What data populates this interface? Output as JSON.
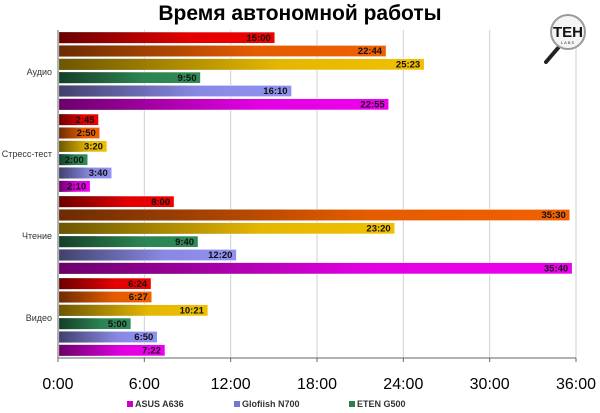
{
  "chart_data": {
    "type": "bar",
    "orientation": "horizontal",
    "title": "Время автономной работы",
    "categories": [
      "Аудио",
      "Стресс-тест",
      "Чтение",
      "Видео"
    ],
    "xlim": [
      "0:00",
      "36:00"
    ],
    "x_ticks": [
      "0:00",
      "6:00",
      "12:00",
      "18:00",
      "24:00",
      "30:00",
      "36:00"
    ],
    "grid": true,
    "legend_position": "bottom",
    "series": [
      {
        "color": "#ee0000",
        "values": [
          "15:00",
          "2:45",
          "8:00",
          "6:24"
        ]
      },
      {
        "color": "#f06000",
        "values": [
          "22:44",
          "2:50",
          "35:30",
          "6:27"
        ]
      },
      {
        "color": "#f0c000",
        "values": [
          "25:23",
          "3:20",
          "23:20",
          "10:21"
        ]
      },
      {
        "name": "ETEN G500",
        "color": "#2e8b57",
        "values": [
          "9:50",
          "2:00",
          "9:40",
          "5:00"
        ]
      },
      {
        "name": "Glofiish N700",
        "color": "#9090f0",
        "values": [
          "16:10",
          "3:40",
          "12:20",
          "6:50"
        ]
      },
      {
        "name": "ASUS A636",
        "color": "#ee00ee",
        "values": [
          "22:55",
          "2:10",
          "35:40",
          "7:22"
        ]
      }
    ],
    "legend": [
      {
        "label": "ASUS A636",
        "color": "#cc00cc"
      },
      {
        "label": "Glofiish N700",
        "color": "#7777cc"
      },
      {
        "label": "ETEN G500",
        "color": "#2e7d4f"
      }
    ]
  },
  "logo": {
    "text": "TEH",
    "subtext": "LABS"
  }
}
